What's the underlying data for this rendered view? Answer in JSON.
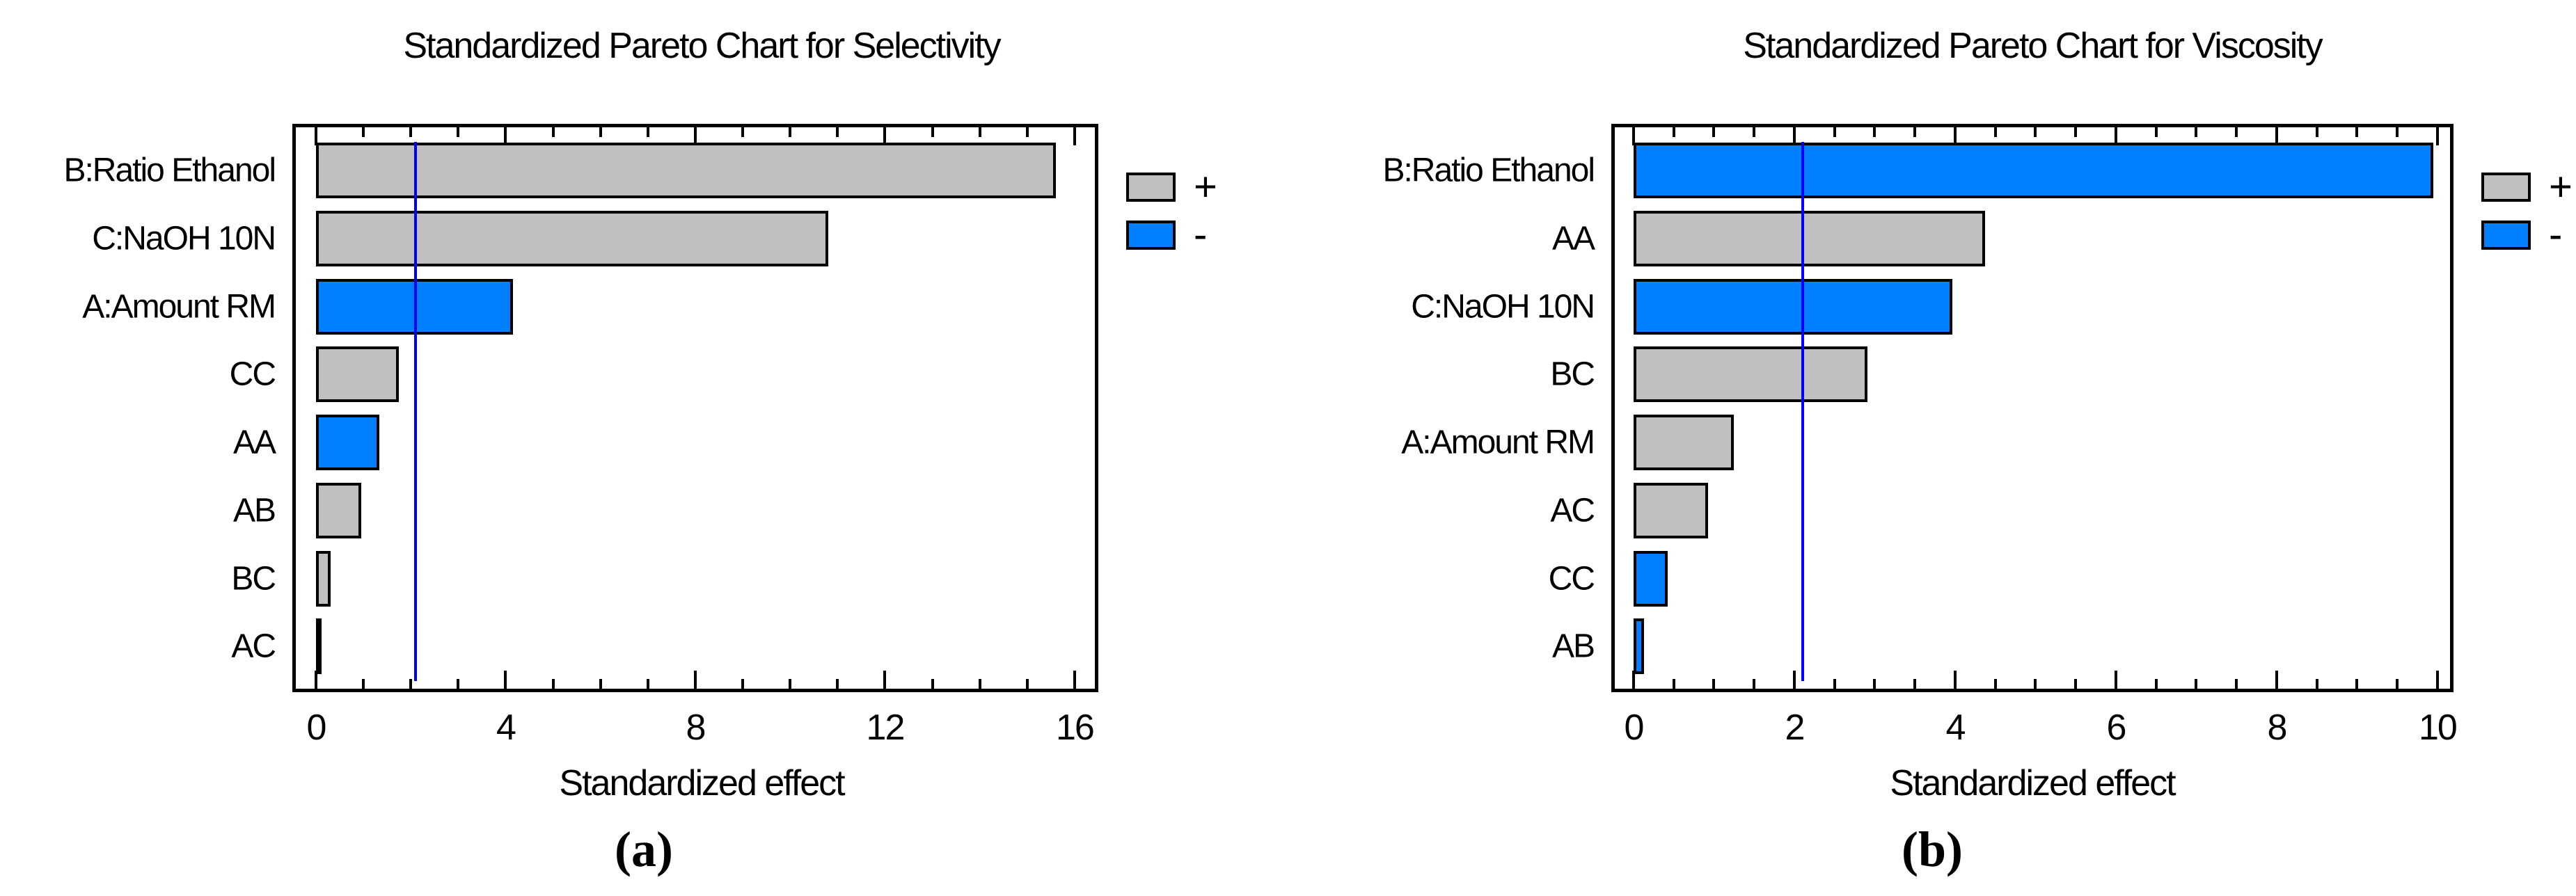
{
  "figure": {
    "colors": {
      "positive": "#C0C0C0",
      "negative": "#0080FF",
      "reference_line": "#0000FF",
      "bar_border": "#000000",
      "plot_border": "#000000",
      "text": "#000000"
    },
    "charts": [
      {
        "id": "a",
        "title": "Standardized Pareto Chart for Selectivity",
        "xlabel": "Standardized effect",
        "caption": "(a)",
        "legend": [
          {
            "label": "+",
            "sign": "plus"
          },
          {
            "label": "-",
            "sign": "minus"
          }
        ],
        "chart_data": {
          "type": "bar",
          "orientation": "horizontal",
          "title": "Standardized Pareto Chart for Selectivity",
          "xlabel": "Standardized effect",
          "ylabel": "",
          "categories": [
            "B:Ratio Ethanol",
            "C:NaOH 10N",
            "A:Amount RM",
            "CC",
            "AA",
            "AB",
            "BC",
            "AC"
          ],
          "values": [
            15.6,
            10.8,
            4.15,
            1.74,
            1.34,
            0.96,
            0.31,
            0.11
          ],
          "signs": [
            "+",
            "+",
            "-",
            "+",
            "-",
            "+",
            "+",
            "-"
          ],
          "reference_line": 2.1,
          "xlim": [
            0,
            16.5
          ],
          "xticks_major": [
            0,
            4,
            8,
            12,
            16
          ],
          "xtick_minor_step": 1,
          "grid": false,
          "legend_position": "right"
        }
      },
      {
        "id": "b",
        "title": "Standardized Pareto Chart for Viscosity",
        "xlabel": "Standardized effect",
        "caption": "(b)",
        "legend": [
          {
            "label": "+",
            "sign": "plus"
          },
          {
            "label": "-",
            "sign": "minus"
          }
        ],
        "chart_data": {
          "type": "bar",
          "orientation": "horizontal",
          "title": "Standardized Pareto Chart for Viscosity",
          "xlabel": "Standardized effect",
          "ylabel": "",
          "categories": [
            "B:Ratio Ethanol",
            "AA",
            "C:NaOH 10N",
            "BC",
            "A:Amount RM",
            "AC",
            "CC",
            "AB"
          ],
          "values": [
            9.95,
            4.37,
            3.97,
            2.91,
            1.25,
            0.93,
            0.42,
            0.13
          ],
          "signs": [
            "-",
            "+",
            "-",
            "+",
            "+",
            "+",
            "-",
            "-"
          ],
          "reference_line": 2.1,
          "xlim": [
            0,
            10.2
          ],
          "xticks_major": [
            0,
            2,
            4,
            6,
            8,
            10
          ],
          "xtick_minor_step": 0.5,
          "grid": false,
          "legend_position": "right"
        }
      }
    ]
  }
}
